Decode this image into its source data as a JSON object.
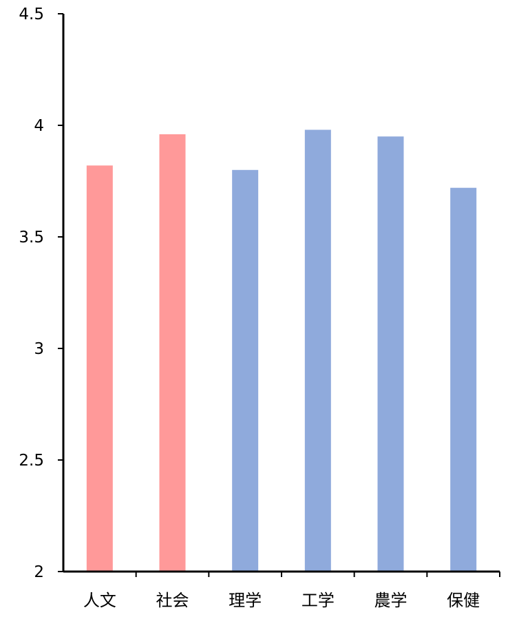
{
  "chart_data": {
    "type": "bar",
    "title": "",
    "xlabel": "",
    "ylabel": "",
    "categories": [
      "人文",
      "社会",
      "理学",
      "工学",
      "農学",
      "保健"
    ],
    "values": [
      3.82,
      3.96,
      3.8,
      3.98,
      3.95,
      3.72
    ],
    "bar_colors": [
      "#FF9999",
      "#FF9999",
      "#8FAADC",
      "#8FAADC",
      "#8FAADC",
      "#8FAADC"
    ],
    "ylim": [
      2,
      4.5
    ],
    "yticks": [
      2,
      2.5,
      3,
      3.5,
      4,
      4.5
    ],
    "ytick_labels": [
      "2",
      "2.5",
      "3",
      "3.5",
      "4",
      "4.5"
    ],
    "grid": false,
    "legend": "none",
    "axis_color": "#000000"
  }
}
